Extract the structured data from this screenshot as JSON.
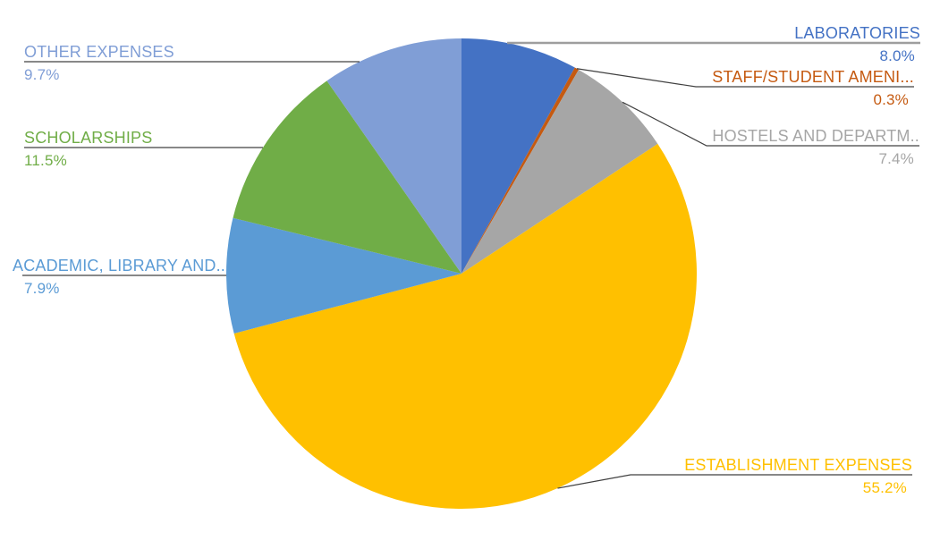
{
  "chart_data": {
    "type": "pie",
    "title": "",
    "start_angle_deg": 0,
    "direction": "clockwise",
    "legend_position": "callout-labels",
    "background_color": "#ffffff",
    "leader_line_color": "#404040",
    "highlight_leader_color": "#9e9e9e",
    "series": [
      {
        "label": "LABORATORIES",
        "value": 8.0,
        "display_value": "8.0%",
        "color": "#4472C4"
      },
      {
        "label": "STAFF/STUDENT AMENI...",
        "value": 0.3,
        "display_value": "0.3%",
        "color": "#C55A11"
      },
      {
        "label": "HOSTELS AND DEPARTM..",
        "value": 7.4,
        "display_value": "7.4%",
        "color": "#A6A6A6"
      },
      {
        "label": "ESTABLISHMENT EXPENSES",
        "value": 55.2,
        "display_value": "55.2%",
        "color": "#FFC000"
      },
      {
        "label": "ACADEMIC, LIBRARY AND...",
        "value": 7.9,
        "display_value": "7.9%",
        "color": "#5B9BD5"
      },
      {
        "label": "SCHOLARSHIPS",
        "value": 11.5,
        "display_value": "11.5%",
        "color": "#70AD47"
      },
      {
        "label": "OTHER EXPENSES",
        "value": 9.7,
        "display_value": "9.7%",
        "color": "#809ED6"
      }
    ]
  }
}
